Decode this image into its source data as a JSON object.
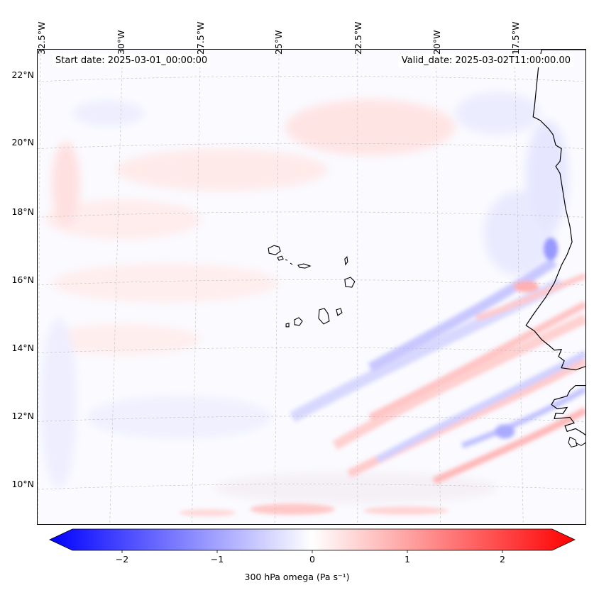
{
  "dates": {
    "start": "Start date: 2025-03-01_00:00:00",
    "valid": "Valid_date: 2025-03-02T11:00:00.00"
  },
  "axes": {
    "lat_labels": [
      "22°N",
      "20°N",
      "18°N",
      "16°N",
      "14°N",
      "12°N",
      "10°N"
    ],
    "lon_labels": [
      "32.5°W",
      "30°W",
      "27.5°W",
      "25°W",
      "22.5°W",
      "20°W",
      "17.5°W"
    ]
  },
  "colorbar": {
    "label": "300 hPa omega (Pa s⁻¹)",
    "ticks": [
      "−2",
      "−1",
      "0",
      "1",
      "2"
    ],
    "min": -2.5,
    "max": 2.5,
    "color_low": "#0000ff",
    "color_mid": "#ffffff",
    "color_high": "#ff0000"
  },
  "map": {
    "islands": [
      "Santo Antão",
      "São Vicente",
      "Santa Luzia",
      "São Nicolau",
      "Sal",
      "Boa Vista",
      "Maio",
      "Santiago",
      "Fogo",
      "Brava"
    ],
    "coast": "West African coastline"
  }
}
